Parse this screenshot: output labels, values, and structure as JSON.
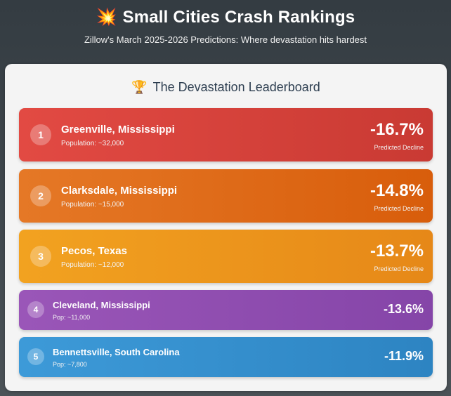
{
  "header": {
    "icon": "💥",
    "title": "Small Cities Crash Rankings",
    "subtitle": "Zillow's March 2025-2026 Predictions: Where devastation hits hardest"
  },
  "panel": {
    "icon": "🏆",
    "title": "The Devastation Leaderboard"
  },
  "rankings": [
    {
      "rank": "1",
      "city": "Greenville, Mississippi",
      "population": "Population: ~32,000",
      "decline": "-16.7%",
      "decline_label": "Predicted Decline",
      "color": "#d9443d"
    },
    {
      "rank": "2",
      "city": "Clarksdale, Mississippi",
      "population": "Population: ~15,000",
      "decline": "-14.8%",
      "decline_label": "Predicted Decline",
      "color": "#df6b19"
    },
    {
      "rank": "3",
      "city": "Pecos, Texas",
      "population": "Population: ~12,000",
      "decline": "-13.7%",
      "decline_label": "Predicted Decline",
      "color": "#ed961d"
    },
    {
      "rank": "4",
      "city": "Cleveland, Mississippi",
      "population": "Pop: ~11,000",
      "decline": "-13.6%",
      "color": "#904eb0"
    },
    {
      "rank": "5",
      "city": "Bennettsville, South Carolina",
      "population": "Pop: ~7,800",
      "decline": "-11.9%",
      "color": "#358fcd"
    }
  ]
}
